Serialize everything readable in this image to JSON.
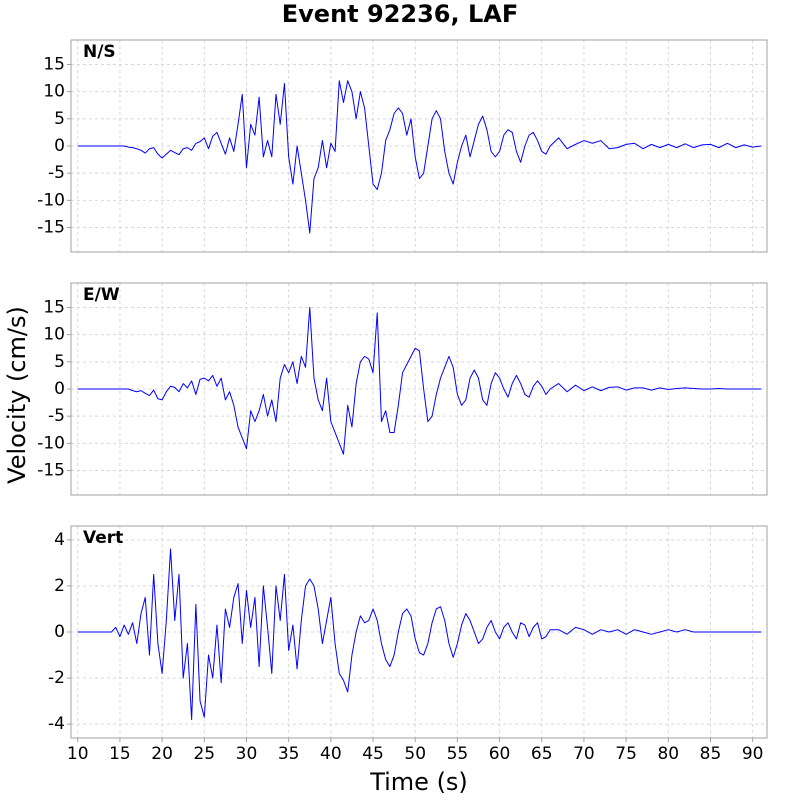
{
  "title": "Event 92236, LAF",
  "ylabel": "Velocity (cm/s)",
  "chart_data": [
    {
      "type": "line",
      "label": "N/S",
      "color": "#0000ff",
      "grid": true,
      "xlim": [
        9.2,
        91.7
      ],
      "ylim": [
        -19.5,
        19.5
      ],
      "xticks": [
        10,
        15,
        20,
        25,
        30,
        35,
        40,
        45,
        50,
        55,
        60,
        65,
        70,
        75,
        80,
        85,
        90
      ],
      "yticks": [
        -15,
        -10,
        -5,
        0,
        5,
        10,
        15
      ],
      "x": [
        10,
        11,
        12,
        13,
        14,
        14.5,
        15,
        15.5,
        16,
        16.5,
        17,
        17.5,
        18,
        18.5,
        19,
        19.5,
        20,
        20.5,
        21,
        21.5,
        22,
        22.5,
        23,
        23.5,
        24,
        24.5,
        25,
        25.5,
        26,
        26.5,
        27,
        27.5,
        28,
        28.5,
        29,
        29.5,
        30,
        30.5,
        31,
        31.5,
        32,
        32.5,
        33,
        33.5,
        34,
        34.5,
        35,
        35.5,
        36,
        36.5,
        37,
        37.5,
        38,
        38.5,
        39,
        39.5,
        40,
        40.5,
        41,
        41.5,
        42,
        42.5,
        43,
        43.5,
        44,
        44.5,
        45,
        45.5,
        46,
        46.5,
        47,
        47.5,
        48,
        48.5,
        49,
        49.5,
        50,
        50.5,
        51,
        51.5,
        52,
        52.5,
        53,
        53.5,
        54,
        54.5,
        55,
        55.5,
        56,
        56.5,
        57,
        57.5,
        58,
        58.5,
        59,
        59.5,
        60,
        60.5,
        61,
        61.5,
        62,
        62.5,
        63,
        63.5,
        64,
        64.5,
        65,
        65.5,
        66,
        67,
        68,
        69,
        70,
        71,
        72,
        73,
        74,
        75,
        76,
        77,
        78,
        79,
        80,
        81,
        82,
        83,
        84,
        85,
        86,
        87,
        88,
        89,
        90,
        91
      ],
      "values": [
        0,
        0,
        0,
        0,
        0,
        0,
        0,
        0,
        -0.2,
        -0.3,
        -0.5,
        -0.8,
        -1.3,
        -0.5,
        -0.3,
        -1.5,
        -2.2,
        -1.5,
        -0.8,
        -1.2,
        -1.6,
        -0.5,
        -0.3,
        -0.8,
        0.5,
        0.8,
        1.5,
        -0.5,
        1.8,
        2.5,
        0.5,
        -1.5,
        1.5,
        -1,
        4,
        9.5,
        -4,
        4,
        2,
        9,
        -2,
        1,
        -2,
        9.5,
        4,
        11.5,
        -2,
        -7,
        0,
        -5,
        -10,
        -16,
        -6,
        -4,
        1,
        -4,
        0.5,
        -1,
        12,
        8,
        12,
        10,
        5,
        10,
        7,
        0,
        -7,
        -8,
        -5,
        1,
        3,
        6,
        7,
        6,
        2,
        5,
        -2,
        -6,
        -5,
        0,
        5,
        6.5,
        5,
        -1,
        -5,
        -7,
        -3,
        0,
        2,
        -2,
        1,
        4,
        5.5,
        3,
        -1,
        -2,
        -1,
        2,
        3,
        2.5,
        -1,
        -3,
        0,
        2,
        2.5,
        1,
        -1,
        -1.5,
        0,
        1.5,
        -0.5,
        0.3,
        1,
        0.5,
        1,
        -0.5,
        -0.3,
        0.3,
        0.5,
        -0.5,
        0.3,
        -0.3,
        0.3,
        -0.3,
        0.4,
        -0.3,
        0.2,
        0.3,
        -0.3,
        0.5,
        -0.3,
        0.2,
        -0.2,
        0
      ]
    },
    {
      "type": "line",
      "label": "E/W",
      "color": "#0000ff",
      "grid": true,
      "xlim": [
        9.2,
        91.7
      ],
      "ylim": [
        -19.5,
        19.5
      ],
      "xticks": [
        10,
        15,
        20,
        25,
        30,
        35,
        40,
        45,
        50,
        55,
        60,
        65,
        70,
        75,
        80,
        85,
        90
      ],
      "yticks": [
        -15,
        -10,
        -5,
        0,
        5,
        10,
        15
      ],
      "x": [
        10,
        11,
        12,
        13,
        14,
        14.5,
        15,
        15.5,
        16,
        16.5,
        17,
        17.5,
        18,
        18.5,
        19,
        19.5,
        20,
        20.5,
        21,
        21.5,
        22,
        22.5,
        23,
        23.5,
        24,
        24.5,
        25,
        25.5,
        26,
        26.5,
        27,
        27.5,
        28,
        28.5,
        29,
        29.5,
        30,
        30.5,
        31,
        31.5,
        32,
        32.5,
        33,
        33.5,
        34,
        34.5,
        35,
        35.5,
        36,
        36.5,
        37,
        37.5,
        38,
        38.5,
        39,
        39.5,
        40,
        40.5,
        41,
        41.5,
        42,
        42.5,
        43,
        43.5,
        44,
        44.5,
        45,
        45.5,
        46,
        46.5,
        47,
        47.5,
        48,
        48.5,
        49,
        49.5,
        50,
        50.5,
        51,
        51.5,
        52,
        52.5,
        53,
        53.5,
        54,
        54.5,
        55,
        55.5,
        56,
        56.5,
        57,
        57.5,
        58,
        58.5,
        59,
        59.5,
        60,
        60.5,
        61,
        61.5,
        62,
        62.5,
        63,
        63.5,
        64,
        64.5,
        65,
        65.5,
        66,
        67,
        68,
        69,
        70,
        71,
        72,
        73,
        74,
        75,
        76,
        77,
        78,
        79,
        80,
        81,
        82,
        83,
        84,
        85,
        86,
        87,
        88,
        89,
        90,
        91
      ],
      "values": [
        0,
        0,
        0,
        0,
        0,
        0,
        0,
        0,
        0,
        -0.3,
        -0.5,
        -0.3,
        -0.8,
        -1.2,
        -0.2,
        -1.8,
        -2,
        -0.5,
        0.5,
        0.3,
        -0.5,
        1,
        0.2,
        1.5,
        -1,
        1.8,
        2,
        1.5,
        2.5,
        0.5,
        2,
        -2,
        -0.5,
        -3,
        -7,
        -9,
        -11,
        -4,
        -6,
        -4,
        -1,
        -5,
        -2,
        -6,
        2,
        4.5,
        3,
        5,
        1,
        6,
        4,
        15,
        2,
        -2,
        -4,
        2,
        -6,
        -8,
        -10,
        -12,
        -3,
        -7,
        1,
        5,
        6,
        5.5,
        3,
        14,
        -6,
        -4,
        -8,
        -8,
        -3,
        3,
        4.5,
        6,
        7.5,
        7,
        0,
        -6,
        -5,
        -1,
        2,
        4,
        6,
        4,
        -1,
        -3,
        -2,
        2,
        3.5,
        2,
        -2,
        -3,
        1,
        3,
        2,
        0,
        -1.5,
        1,
        2.5,
        1,
        -1,
        -1.5,
        0.5,
        1.5,
        0.5,
        -1,
        0,
        1,
        -0.5,
        0.7,
        -0.3,
        0.4,
        -0.3,
        0.3,
        0.4,
        -0.2,
        0.2,
        0.2,
        -0.2,
        0.2,
        -0.1,
        0.1,
        0.2,
        0.1,
        0,
        0,
        0.1,
        0,
        0,
        0,
        0,
        0
      ]
    },
    {
      "type": "line",
      "label": "Vert",
      "color": "#0000ff",
      "grid": true,
      "xlabel": "Time (s)",
      "xlim": [
        9.2,
        91.7
      ],
      "ylim": [
        -4.6,
        4.6
      ],
      "xticks": [
        10,
        15,
        20,
        25,
        30,
        35,
        40,
        45,
        50,
        55,
        60,
        65,
        70,
        75,
        80,
        85,
        90
      ],
      "yticks": [
        -4,
        -2,
        0,
        2,
        4
      ],
      "x": [
        10,
        11,
        12,
        13,
        14,
        14.5,
        15,
        15.5,
        16,
        16.5,
        17,
        17.5,
        18,
        18.5,
        19,
        19.5,
        20,
        20.5,
        21,
        21.5,
        22,
        22.5,
        23,
        23.5,
        24,
        24.5,
        25,
        25.5,
        26,
        26.5,
        27,
        27.5,
        28,
        28.5,
        29,
        29.5,
        30,
        30.5,
        31,
        31.5,
        32,
        32.5,
        33,
        33.5,
        34,
        34.5,
        35,
        35.5,
        36,
        36.5,
        37,
        37.5,
        38,
        38.5,
        39,
        39.5,
        40,
        40.5,
        41,
        41.5,
        42,
        42.5,
        43,
        43.5,
        44,
        44.5,
        45,
        45.5,
        46,
        46.5,
        47,
        47.5,
        48,
        48.5,
        49,
        49.5,
        50,
        50.5,
        51,
        51.5,
        52,
        52.5,
        53,
        53.5,
        54,
        54.5,
        55,
        55.5,
        56,
        56.5,
        57,
        57.5,
        58,
        58.5,
        59,
        59.5,
        60,
        60.5,
        61,
        61.5,
        62,
        62.5,
        63,
        63.5,
        64,
        64.5,
        65,
        65.5,
        66,
        67,
        68,
        69,
        70,
        71,
        72,
        73,
        74,
        75,
        76,
        77,
        78,
        79,
        80,
        81,
        82,
        83,
        84,
        85,
        86,
        87,
        88,
        89,
        90,
        91
      ],
      "values": [
        0,
        0,
        0,
        0,
        0,
        0.2,
        -0.2,
        0.3,
        -0.1,
        0.4,
        -0.5,
        0.8,
        1.5,
        -1,
        2.5,
        -0.5,
        -1.8,
        0.5,
        3.6,
        0.5,
        2.5,
        -2,
        -0.5,
        -3.8,
        1.2,
        -3,
        -3.7,
        -1,
        -2,
        0.3,
        -2.2,
        1,
        0.2,
        1.5,
        2.1,
        -0.5,
        1.8,
        0.2,
        1.5,
        -1.5,
        2,
        0.2,
        -1.8,
        2,
        0.5,
        2.5,
        -0.8,
        0.3,
        -1.6,
        0.5,
        2,
        2.3,
        2,
        1,
        -0.5,
        0.5,
        1.5,
        -0.5,
        -1.8,
        -2.1,
        -2.6,
        -1,
        0,
        0.7,
        0.4,
        0.5,
        1,
        0.5,
        -0.5,
        -1.2,
        -1.5,
        -1,
        0,
        0.8,
        1,
        0.7,
        -0.3,
        -0.9,
        -1,
        -0.5,
        0.4,
        1,
        1.1,
        0.5,
        -0.5,
        -1.1,
        -0.5,
        0.3,
        0.8,
        0.5,
        0,
        -0.5,
        -0.3,
        0.2,
        0.5,
        0,
        -0.3,
        0.2,
        0.4,
        0,
        -0.3,
        0.4,
        0.3,
        -0.2,
        0.2,
        0.4,
        -0.3,
        -0.2,
        0.1,
        0.1,
        -0.1,
        0.2,
        0.1,
        -0.1,
        0.1,
        0,
        0.1,
        -0.1,
        0.1,
        0,
        -0.1,
        0,
        0.1,
        0,
        0.1,
        0,
        0,
        0,
        0,
        0,
        0,
        0,
        0,
        0
      ]
    }
  ]
}
